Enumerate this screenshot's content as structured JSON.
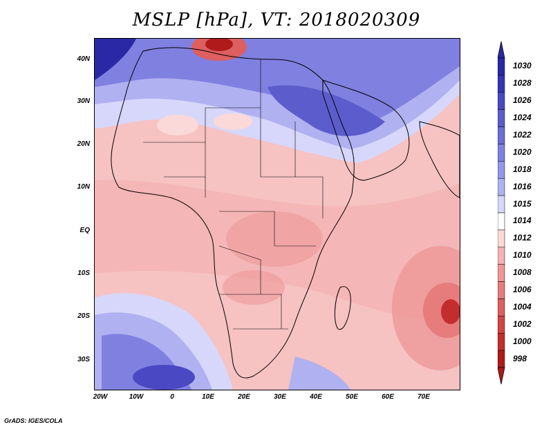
{
  "title": "MSLP [hPa], VT: 2018020309",
  "credit": "GrADS: IGES/COLA",
  "lat_labels": [
    "40N",
    "30N",
    "20N",
    "10N",
    "EQ",
    "10S",
    "20S",
    "30S"
  ],
  "lon_labels": [
    "20W",
    "10W",
    "0",
    "10E",
    "20E",
    "30E",
    "40E",
    "50E",
    "60E",
    "70E"
  ],
  "colorbar": {
    "levels": [
      "1030",
      "1028",
      "1026",
      "1024",
      "1022",
      "1020",
      "1018",
      "1016",
      "1015",
      "1014",
      "1012",
      "1010",
      "1008",
      "1006",
      "1004",
      "1002",
      "1000",
      "998"
    ],
    "colors": [
      "#2b28a6",
      "#3633b5",
      "#4a48c2",
      "#5c5ccc",
      "#6c6dd6",
      "#7f80e0",
      "#9596e8",
      "#b0b1f0",
      "#d6d7fa",
      "#ffffff",
      "#fbd9d9",
      "#f4b3b3",
      "#ee9797",
      "#e67c7c",
      "#dd5f5f",
      "#d24545",
      "#c42d2d",
      "#b01a1a"
    ]
  },
  "colors": {
    "high": "#3633b5",
    "neutral": "#ffffff",
    "low": "#b01a1a"
  }
}
